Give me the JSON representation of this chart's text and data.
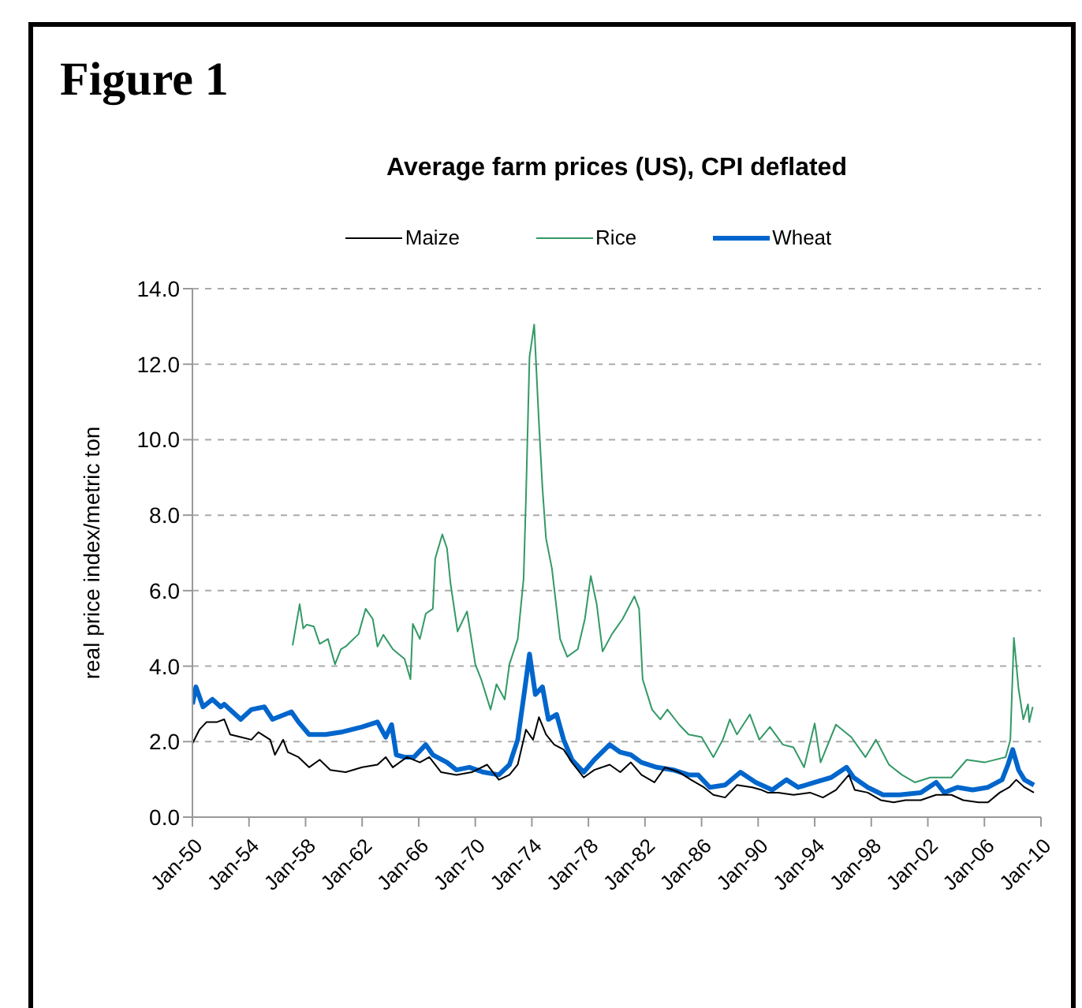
{
  "chart_data": {
    "type": "line",
    "title": "Average farm prices (US), CPI deflated",
    "ylabel": "real price index/metric ton",
    "annotations": [
      "Figure 1"
    ],
    "xlim": [
      "1950-01",
      "2010-01"
    ],
    "xticks": [
      {
        "value": "1950-01",
        "label": "Jan-50"
      },
      {
        "value": "1954-01",
        "label": "Jan-54"
      },
      {
        "value": "1958-01",
        "label": "Jan-58"
      },
      {
        "value": "1962-01",
        "label": "Jan-62"
      },
      {
        "value": "1966-01",
        "label": "Jan-66"
      },
      {
        "value": "1970-01",
        "label": "Jan-70"
      },
      {
        "value": "1974-01",
        "label": "Jan-74"
      },
      {
        "value": "1978-01",
        "label": "Jan-78"
      },
      {
        "value": "1982-01",
        "label": "Jan-82"
      },
      {
        "value": "1986-01",
        "label": "Jan-86"
      },
      {
        "value": "1990-01",
        "label": "Jan-90"
      },
      {
        "value": "1994-01",
        "label": "Jan-94"
      },
      {
        "value": "1998-01",
        "label": "Jan-98"
      },
      {
        "value": "2002-01",
        "label": "Jan-02"
      },
      {
        "value": "2006-01",
        "label": "Jan-06"
      },
      {
        "value": "2010-01",
        "label": "Jan-10"
      }
    ],
    "ylim": [
      0,
      14
    ],
    "yticks": [
      {
        "value": 0,
        "label": "0.0"
      },
      {
        "value": 2,
        "label": "2.0"
      },
      {
        "value": 4,
        "label": "4.0"
      },
      {
        "value": 6,
        "label": "6.0"
      },
      {
        "value": 8,
        "label": "8.0"
      },
      {
        "value": 10,
        "label": "10.0"
      },
      {
        "value": 12,
        "label": "12.0"
      },
      {
        "value": 14,
        "label": "14.0"
      }
    ],
    "grid": "y",
    "legend": "top",
    "marker": "none",
    "line_style": "solid",
    "series": [
      {
        "name": "Wheat",
        "color": "#0066cc",
        "x": [
          "1950-01",
          "1950-04",
          "1950-10",
          "1951-06",
          "1952-01",
          "1952-04",
          "1952-11",
          "1953-06",
          "1954-03",
          "1955-02",
          "1955-09",
          "1957-01",
          "1957-07",
          "1958-04",
          "1959-06",
          "1960-07",
          "1962-01",
          "1963-02",
          "1963-09",
          "1964-02",
          "1964-06",
          "1965-01",
          "1965-09",
          "1966-07",
          "1967-01",
          "1968-01",
          "1968-09",
          "1969-08",
          "1970-08",
          "1971-09",
          "1972-06",
          "1973-01",
          "1973-07",
          "1973-11",
          "1974-04",
          "1974-10",
          "1975-03",
          "1975-10",
          "1976-04",
          "1976-11",
          "1977-09",
          "1978-06",
          "1979-07",
          "1980-04",
          "1981-01",
          "1981-10",
          "1982-11",
          "1984-01",
          "1985-02",
          "1985-10",
          "1986-08",
          "1987-09",
          "1988-10",
          "1989-11",
          "1991-01",
          "1992-01",
          "1992-11",
          "1994-01",
          "1995-03",
          "1996-04",
          "1996-10",
          "1997-10",
          "1998-11",
          "2000-01",
          "2001-07",
          "2002-08",
          "2003-03",
          "2004-02",
          "2005-03",
          "2006-04",
          "2007-04",
          "2007-09",
          "2008-01",
          "2008-06",
          "2008-11",
          "2009-07"
        ],
        "values": [
          2.99,
          3.45,
          2.92,
          3.12,
          2.92,
          2.99,
          2.79,
          2.59,
          2.85,
          2.92,
          2.59,
          2.79,
          2.52,
          2.19,
          2.19,
          2.25,
          2.39,
          2.52,
          2.12,
          2.45,
          1.65,
          1.59,
          1.59,
          1.92,
          1.65,
          1.45,
          1.25,
          1.32,
          1.19,
          1.12,
          1.39,
          2.05,
          3.39,
          4.32,
          3.25,
          3.45,
          2.59,
          2.72,
          2.05,
          1.52,
          1.19,
          1.52,
          1.92,
          1.72,
          1.65,
          1.45,
          1.32,
          1.25,
          1.12,
          1.12,
          0.79,
          0.85,
          1.19,
          0.92,
          0.72,
          0.99,
          0.79,
          0.92,
          1.05,
          1.32,
          1.05,
          0.79,
          0.59,
          0.59,
          0.65,
          0.92,
          0.65,
          0.79,
          0.72,
          0.79,
          0.99,
          1.39,
          1.79,
          1.25,
          0.99,
          0.85
        ]
      },
      {
        "name": "Maize",
        "color": "#000000",
        "x": [
          "1950-01",
          "1950-07",
          "1951-01",
          "1951-10",
          "1952-04",
          "1952-09",
          "1953-06",
          "1954-03",
          "1954-09",
          "1955-07",
          "1955-11",
          "1956-06",
          "1956-10",
          "1957-07",
          "1958-04",
          "1959-01",
          "1959-10",
          "1960-11",
          "1962-01",
          "1963-02",
          "1963-09",
          "1964-03",
          "1965-03",
          "1966-02",
          "1966-10",
          "1967-08",
          "1968-09",
          "1969-10",
          "1970-11",
          "1971-09",
          "1972-06",
          "1973-01",
          "1973-08",
          "1974-02",
          "1974-07",
          "1975-01",
          "1975-08",
          "1976-04",
          "1976-11",
          "1977-09",
          "1978-06",
          "1979-07",
          "1980-04",
          "1981-01",
          "1981-10",
          "1982-09",
          "1983-06",
          "1984-06",
          "1985-04",
          "1986-03",
          "1986-11",
          "1987-09",
          "1988-07",
          "1989-08",
          "1990-04",
          "1990-09",
          "1991-06",
          "1992-07",
          "1993-09",
          "1994-08",
          "1995-07",
          "1996-06",
          "1996-11",
          "1997-10",
          "1998-09",
          "1999-08",
          "2000-06",
          "2001-07",
          "2002-08",
          "2003-09",
          "2004-07",
          "2005-08",
          "2006-04",
          "2007-02",
          "2007-10",
          "2008-04",
          "2008-11",
          "2009-07"
        ],
        "values": [
          1.95,
          2.32,
          2.52,
          2.52,
          2.59,
          2.19,
          2.12,
          2.05,
          2.25,
          2.05,
          1.65,
          2.05,
          1.72,
          1.59,
          1.32,
          1.52,
          1.25,
          1.19,
          1.32,
          1.39,
          1.59,
          1.32,
          1.59,
          1.45,
          1.59,
          1.19,
          1.12,
          1.19,
          1.39,
          0.99,
          1.12,
          1.39,
          2.32,
          2.05,
          2.65,
          2.19,
          1.92,
          1.79,
          1.45,
          1.05,
          1.25,
          1.39,
          1.19,
          1.45,
          1.12,
          0.92,
          1.32,
          1.19,
          0.99,
          0.79,
          0.59,
          0.52,
          0.85,
          0.79,
          0.72,
          0.65,
          0.65,
          0.59,
          0.65,
          0.52,
          0.72,
          1.12,
          0.72,
          0.65,
          0.45,
          0.39,
          0.45,
          0.45,
          0.59,
          0.59,
          0.45,
          0.39,
          0.39,
          0.65,
          0.79,
          0.99,
          0.79,
          0.65
        ]
      },
      {
        "name": "Rice",
        "color": "#339966",
        "x": [
          "1957-02",
          "1957-08",
          "1957-11",
          "1958-02",
          "1958-08",
          "1959-01",
          "1959-08",
          "1960-02",
          "1960-07",
          "1960-11",
          "1961-10",
          "1962-04",
          "1962-10",
          "1963-02",
          "1963-07",
          "1964-03",
          "1965-01",
          "1965-06",
          "1965-08",
          "1966-02",
          "1966-07",
          "1967-01",
          "1967-03",
          "1967-09",
          "1968-01",
          "1968-04",
          "1968-10",
          "1969-06",
          "1970-01",
          "1970-06",
          "1971-02",
          "1971-07",
          "1972-02",
          "1972-06",
          "1973-01",
          "1973-06",
          "1973-08",
          "1973-11",
          "1974-03",
          "1974-07",
          "1974-10",
          "1975-01",
          "1975-06",
          "1976-01",
          "1976-07",
          "1977-04",
          "1977-10",
          "1978-03",
          "1978-08",
          "1979-01",
          "1979-09",
          "1980-06",
          "1981-04",
          "1981-08",
          "1981-11",
          "1982-07",
          "1983-02",
          "1983-08",
          "1984-06",
          "1985-02",
          "1986-01",
          "1986-11",
          "1987-07",
          "1988-01",
          "1988-07",
          "1989-06",
          "1990-02",
          "1990-11",
          "1991-10",
          "1992-07",
          "1993-04",
          "1994-01",
          "1994-06",
          "1995-07",
          "1996-08",
          "1997-08",
          "1998-05",
          "1999-04",
          "2000-03",
          "2001-02",
          "2002-03",
          "2003-09",
          "2004-10",
          "2006-01",
          "2007-07",
          "2007-11",
          "2008-02",
          "2008-06",
          "2008-10",
          "2009-02",
          "2009-03",
          "2009-06"
        ],
        "values": [
          4.55,
          5.64,
          5.0,
          5.1,
          5.05,
          4.59,
          4.72,
          4.05,
          4.45,
          4.52,
          4.85,
          5.52,
          5.25,
          4.52,
          4.83,
          4.45,
          4.19,
          3.65,
          5.12,
          4.72,
          5.39,
          5.52,
          6.85,
          7.49,
          7.12,
          6.19,
          4.92,
          5.45,
          4.05,
          3.65,
          2.85,
          3.52,
          3.12,
          4.05,
          4.72,
          6.32,
          8.45,
          12.19,
          13.05,
          10.45,
          8.72,
          7.39,
          6.59,
          4.72,
          4.25,
          4.45,
          5.25,
          6.39,
          5.65,
          4.39,
          4.85,
          5.25,
          5.85,
          5.52,
          3.65,
          2.85,
          2.59,
          2.85,
          2.45,
          2.19,
          2.12,
          1.59,
          2.05,
          2.59,
          2.19,
          2.72,
          2.05,
          2.39,
          1.92,
          1.85,
          1.32,
          2.48,
          1.45,
          2.45,
          2.12,
          1.59,
          2.05,
          1.39,
          1.12,
          0.92,
          1.05,
          1.05,
          1.52,
          1.45,
          1.59,
          2.05,
          4.75,
          3.39,
          2.59,
          2.99,
          2.52,
          2.92
        ]
      }
    ]
  }
}
